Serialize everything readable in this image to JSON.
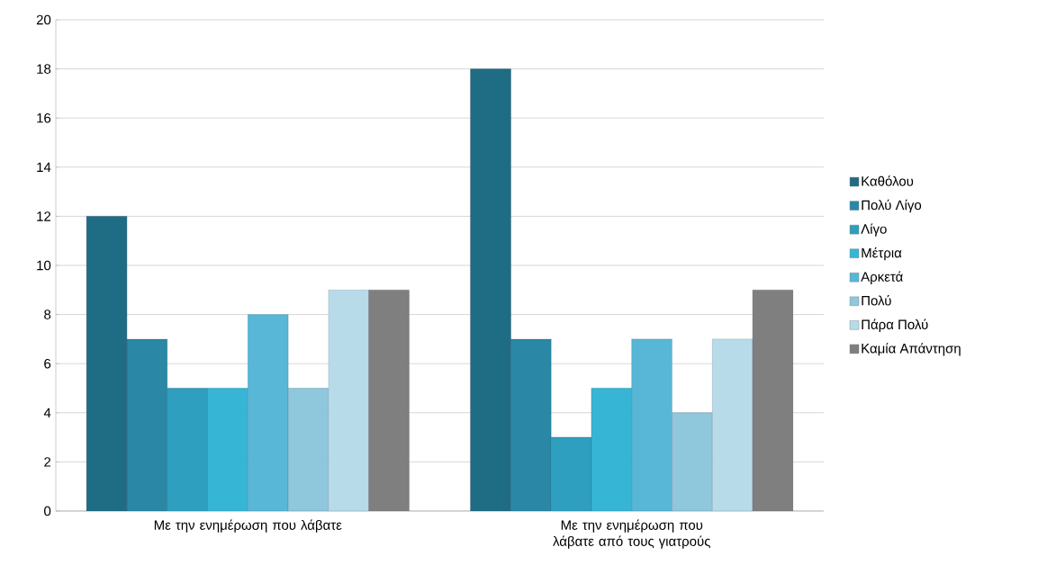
{
  "chart_data": {
    "type": "bar",
    "categories": [
      "Με την ενημέρωση που λάβατε",
      "Με την ενημέρωση που λάβατε από τους γιατρούς"
    ],
    "series": [
      {
        "name": "Καθόλου",
        "color": "#1f6d85",
        "values": [
          12,
          18
        ]
      },
      {
        "name": "Πολύ Λίγο",
        "color": "#2a87a5",
        "values": [
          7,
          7
        ]
      },
      {
        "name": "Λίγο",
        "color": "#2e9fbf",
        "values": [
          5,
          3
        ]
      },
      {
        "name": "Μέτρια",
        "color": "#36b6d4",
        "values": [
          5,
          5
        ]
      },
      {
        "name": "Αρκετά",
        "color": "#58b7d6",
        "values": [
          8,
          7
        ]
      },
      {
        "name": "Πολύ",
        "color": "#8fc7dc",
        "values": [
          5,
          4
        ]
      },
      {
        "name": "Πάρα Πολύ",
        "color": "#b7dbe9",
        "values": [
          9,
          7
        ]
      },
      {
        "name": "Καμία Απάντηση",
        "color": "#7f7f7f",
        "values": [
          9,
          9
        ]
      }
    ],
    "ylim": [
      0,
      20
    ],
    "yticks": [
      0,
      2,
      4,
      6,
      8,
      10,
      12,
      14,
      16,
      18,
      20
    ],
    "grid": "y",
    "legend": "right"
  }
}
